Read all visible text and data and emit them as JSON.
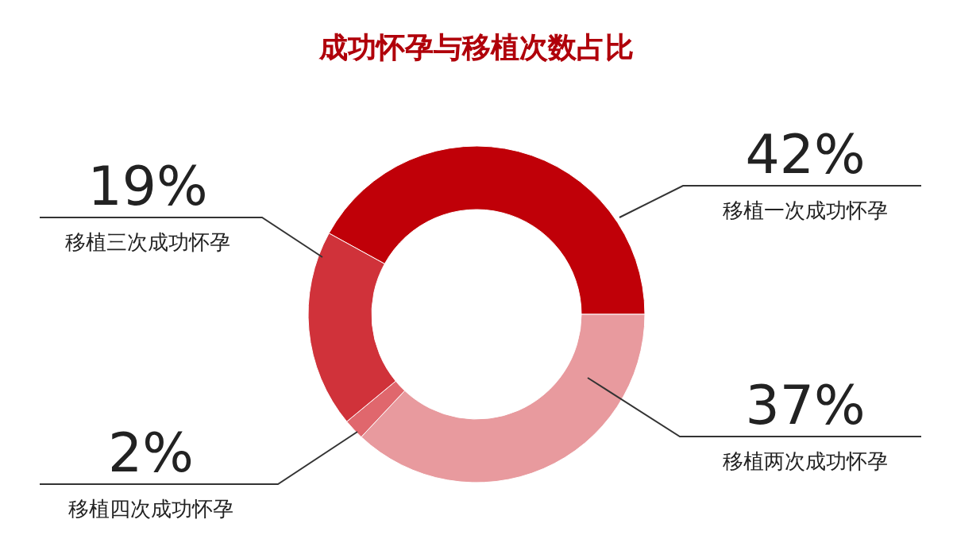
{
  "chart_data": {
    "type": "donut",
    "title": "成功怀孕与移植次数占比",
    "categories": [
      "移植一次成功怀孕",
      "移植两次成功怀孕",
      "移植四次成功怀孕",
      "移植三次成功怀孕"
    ],
    "values": [
      42,
      37,
      2,
      19
    ],
    "value_labels": [
      "42%",
      "37%",
      "2%",
      "19%"
    ],
    "colors": [
      "#c00008",
      "#e89a9e",
      "#e0676d",
      "#d0323a"
    ]
  }
}
